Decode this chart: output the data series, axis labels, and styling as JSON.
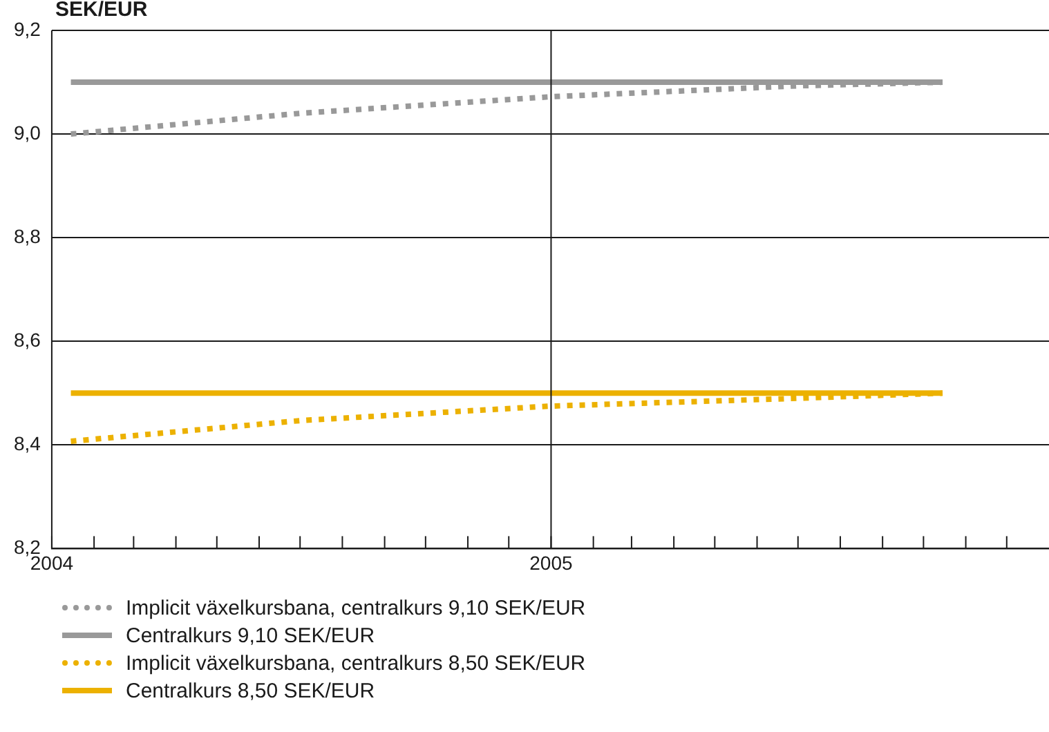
{
  "chart_data": {
    "type": "line",
    "ylabel": "SEK/EUR",
    "xlim": [
      "2004-01-01",
      "2006-01-01"
    ],
    "xticks": [
      {
        "value": "2004-01-01",
        "label": "2004"
      },
      {
        "value": "2004-02-01",
        "label": null
      },
      {
        "value": "2004-03-01",
        "label": null
      },
      {
        "value": "2004-04-01",
        "label": null
      },
      {
        "value": "2004-05-01",
        "label": null
      },
      {
        "value": "2004-06-01",
        "label": null
      },
      {
        "value": "2004-07-01",
        "label": null
      },
      {
        "value": "2004-08-01",
        "label": null
      },
      {
        "value": "2004-09-01",
        "label": null
      },
      {
        "value": "2004-10-01",
        "label": null
      },
      {
        "value": "2004-11-01",
        "label": null
      },
      {
        "value": "2004-12-01",
        "label": null
      },
      {
        "value": "2005-01-01",
        "label": "2005"
      },
      {
        "value": "2005-02-01",
        "label": null
      },
      {
        "value": "2005-03-01",
        "label": null
      },
      {
        "value": "2005-04-01",
        "label": null
      },
      {
        "value": "2005-05-01",
        "label": null
      },
      {
        "value": "2005-06-01",
        "label": null
      },
      {
        "value": "2005-07-01",
        "label": null
      },
      {
        "value": "2005-08-01",
        "label": null
      },
      {
        "value": "2005-09-01",
        "label": null
      },
      {
        "value": "2005-10-01",
        "label": null
      },
      {
        "value": "2005-11-01",
        "label": null
      },
      {
        "value": "2005-12-01",
        "label": null
      }
    ],
    "ylim": [
      8.2,
      9.2
    ],
    "yticks": [
      {
        "value": 8.2,
        "label": "8,2"
      },
      {
        "value": 8.4,
        "label": "8,4"
      },
      {
        "value": 8.6,
        "label": "8,6"
      },
      {
        "value": 8.8,
        "label": "8,8"
      },
      {
        "value": 9.0,
        "label": "9,0"
      },
      {
        "value": 9.2,
        "label": "9,2"
      }
    ],
    "grid": "y",
    "legend": "bottom",
    "marker": "none",
    "ref_lines": [
      {
        "axis": "x",
        "value": "2005-01-01",
        "color": "#1a1a1a",
        "line_style": "solid"
      }
    ],
    "x": [
      "2004-01-15",
      "2004-07-01",
      "2005-01-01",
      "2005-07-01",
      "2005-10-15"
    ],
    "series": [
      {
        "name": "Implicit växelkursbana, centralkurs 9,10 SEK/EUR",
        "color": "#999999",
        "line_style": "dotted",
        "values": [
          9.0,
          9.04,
          9.072,
          9.093,
          9.1
        ]
      },
      {
        "name": "Centralkurs 9,10 SEK/EUR",
        "color": "#999999",
        "line_style": "solid",
        "values": [
          9.1,
          9.1,
          9.1,
          9.1,
          9.1
        ]
      },
      {
        "name": "Implicit växelkursbana, centralkurs 8,50 SEK/EUR",
        "color": "#ecb100",
        "line_style": "dotted",
        "values": [
          8.407,
          8.447,
          8.475,
          8.49,
          8.5
        ]
      },
      {
        "name": "Centralkurs 8,50 SEK/EUR",
        "color": "#ecb100",
        "line_style": "solid",
        "values": [
          8.5,
          8.5,
          8.5,
          8.5,
          8.5
        ]
      }
    ]
  }
}
